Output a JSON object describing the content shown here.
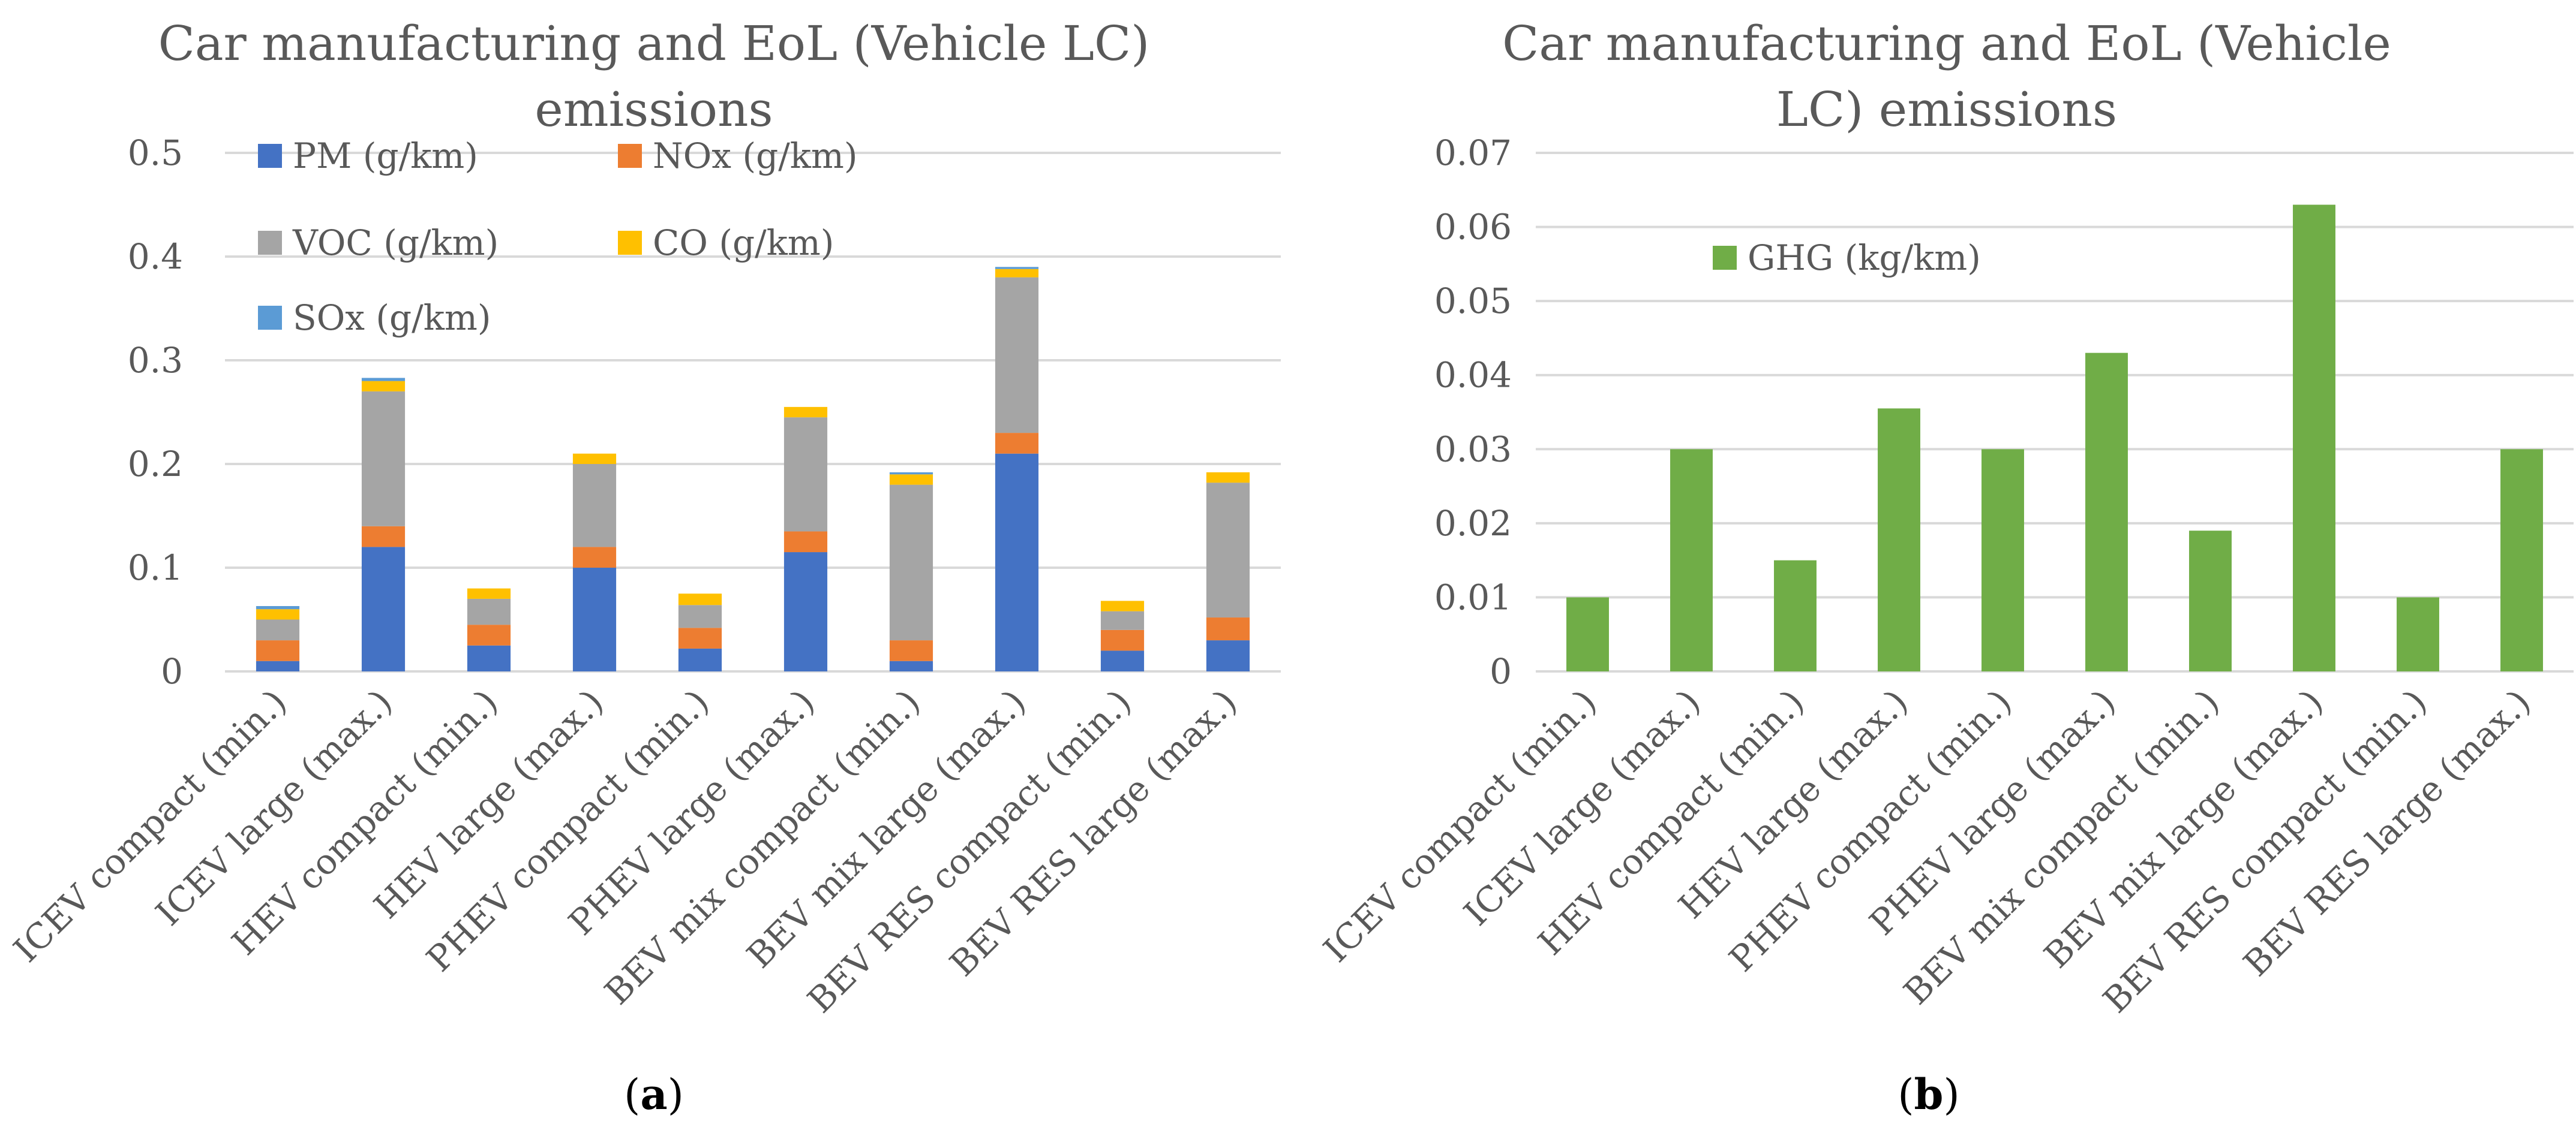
{
  "chart_data": [
    {
      "type": "bar",
      "stacked": true,
      "title": "Car manufacturing and EoL (Vehicle LC) emissions",
      "title_lines": [
        "Car manufacturing and EoL (Vehicle LC)",
        "emissions"
      ],
      "panel_label": "(a)",
      "categories": [
        "ICEV compact (min.)",
        "ICEV large (max.)",
        "HEV compact (min.)",
        "HEV large (max.)",
        "PHEV compact (min.)",
        "PHEV large (max.)",
        "BEV mix compact (min.)",
        "BEV mix large (max.)",
        "BEV RES compact (min.)",
        "BEV RES large (max.)"
      ],
      "series": [
        {
          "name": "PM (g/km)",
          "color": "#4472c4",
          "values": [
            0.01,
            0.12,
            0.025,
            0.1,
            0.022,
            0.115,
            0.01,
            0.21,
            0.02,
            0.03
          ]
        },
        {
          "name": "NOx (g/km)",
          "color": "#ed7d31",
          "values": [
            0.02,
            0.02,
            0.02,
            0.02,
            0.02,
            0.02,
            0.02,
            0.02,
            0.02,
            0.022
          ]
        },
        {
          "name": "VOC (g/km)",
          "color": "#a5a5a5",
          "values": [
            0.02,
            0.13,
            0.025,
            0.08,
            0.022,
            0.11,
            0.15,
            0.15,
            0.018,
            0.13
          ]
        },
        {
          "name": "CO (g/km)",
          "color": "#ffc000",
          "values": [
            0.01,
            0.01,
            0.01,
            0.01,
            0.011,
            0.01,
            0.01,
            0.008,
            0.01,
            0.01
          ]
        },
        {
          "name": "SOx (g/km)",
          "color": "#5b9bd5",
          "values": [
            0.003,
            0.003,
            0.0,
            0.0,
            0.0,
            0.0,
            0.002,
            0.002,
            0.0,
            0.0
          ]
        }
      ],
      "yticks": [
        "0",
        "0.1",
        "0.2",
        "0.3",
        "0.4",
        "0.5"
      ],
      "ylim": [
        0,
        0.5
      ],
      "grid": true,
      "legend_position": "top-left inside"
    },
    {
      "type": "bar",
      "title": "Car manufacturing and EoL (Vehicle LC) emissions",
      "title_lines": [
        "Car manufacturing and EoL (Vehicle",
        "LC) emissions"
      ],
      "panel_label": "(b)",
      "categories": [
        "ICEV compact (min.)",
        "ICEV large (max.)",
        "HEV compact (min.)",
        "HEV large (max.)",
        "PHEV compact (min.)",
        "PHEV large (max.)",
        "BEV mix compact (min.)",
        "BEV mix large (max.)",
        "BEV RES compact (min.)",
        "BEV RES large (max.)"
      ],
      "series": [
        {
          "name": "GHG (kg/km)",
          "color": "#70ad47",
          "values": [
            0.01,
            0.03,
            0.015,
            0.0355,
            0.03,
            0.043,
            0.019,
            0.063,
            0.01,
            0.03
          ]
        }
      ],
      "yticks": [
        "0",
        "0.01",
        "0.02",
        "0.03",
        "0.04",
        "0.05",
        "0.06",
        "0.07"
      ],
      "ylim": [
        0,
        0.07
      ],
      "grid": true,
      "legend_position": "top-left inside"
    }
  ]
}
